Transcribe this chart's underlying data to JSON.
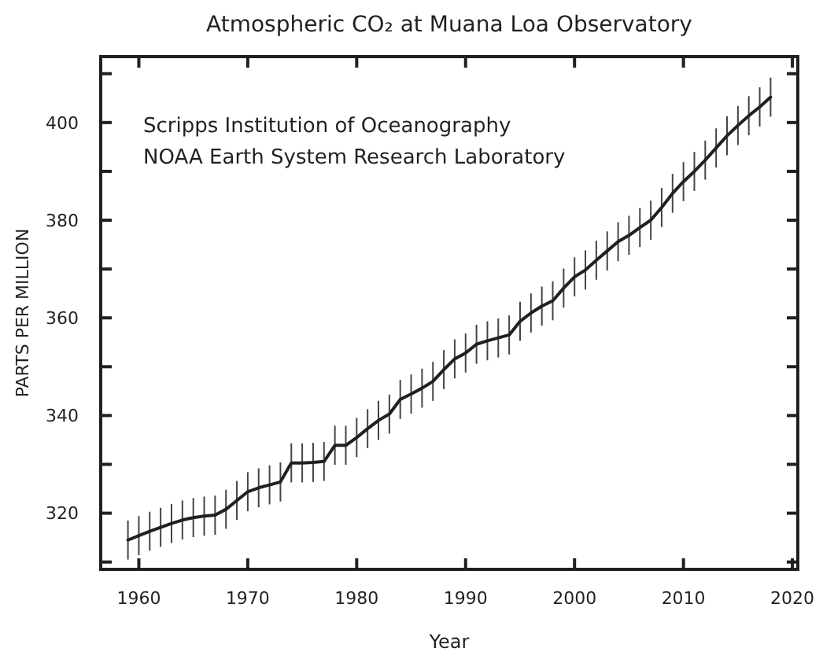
{
  "chart_data": {
    "type": "line",
    "title": "Atmospheric CO₂ at Muana Loa Observatory",
    "xlabel": "Year",
    "ylabel": "PARTS PER MILLION",
    "annotations": [
      "Scripps Institution of Oceanography",
      "NOAA Earth System Research Laboratory"
    ],
    "x": [
      1959,
      1960,
      1961,
      1962,
      1963,
      1964,
      1965,
      1966,
      1967,
      1968,
      1969,
      1970,
      1971,
      1972,
      1973,
      1974,
      1975,
      1976,
      1977,
      1978,
      1979,
      1980,
      1981,
      1982,
      1983,
      1984,
      1985,
      1986,
      1987,
      1988,
      1989,
      1990,
      1991,
      1992,
      1993,
      1994,
      1995,
      1996,
      1997,
      1998,
      1999,
      2000,
      2001,
      2002,
      2003,
      2004,
      2005,
      2006,
      2007,
      2008,
      2009,
      2010,
      2011,
      2012,
      2013,
      2014,
      2015,
      2016,
      2017,
      2018
    ],
    "series": [
      {
        "color": "#231f20",
        "values": [
          314.5,
          315.4,
          316.3,
          317.1,
          317.9,
          318.6,
          319.1,
          319.4,
          319.6,
          320.8,
          322.6,
          324.4,
          325.2,
          325.8,
          326.4,
          330.3,
          330.3,
          330.4,
          330.6,
          333.9,
          333.9,
          335.5,
          337.3,
          339.0,
          340.3,
          343.3,
          344.4,
          345.6,
          347.0,
          349.4,
          351.6,
          352.8,
          354.6,
          355.3,
          355.9,
          356.5,
          359.3,
          361.0,
          362.4,
          363.5,
          366.1,
          368.4,
          369.8,
          371.8,
          373.7,
          375.6,
          376.9,
          378.5,
          380.0,
          382.6,
          385.5,
          387.9,
          390.0,
          392.3,
          394.8,
          397.3,
          399.4,
          401.4,
          403.2,
          405.2
        ],
        "errors": [
          4,
          4,
          4,
          4,
          4,
          4,
          4,
          4,
          4,
          4,
          4,
          4,
          4,
          4,
          4,
          4,
          4,
          4,
          4,
          4,
          4,
          4,
          4,
          4,
          4,
          4,
          4,
          4,
          4,
          4,
          4,
          4,
          4,
          4,
          4,
          4,
          4,
          4,
          4,
          4,
          4,
          4,
          4,
          4,
          4,
          4,
          4,
          4,
          4,
          4,
          4,
          4,
          4,
          4,
          4,
          4,
          4,
          4,
          4,
          4
        ]
      }
    ],
    "xlim": [
      1956.5,
      2020.5
    ],
    "xticks": [
      1960,
      1970,
      1980,
      1990,
      2000,
      2010,
      2020
    ],
    "ylim": [
      308.5,
      413.5
    ],
    "yticks": [
      {
        "value": 310,
        "label": null
      },
      320,
      {
        "value": 330,
        "label": null
      },
      340,
      {
        "value": 350,
        "label": null
      },
      360,
      {
        "value": 370,
        "label": null
      },
      380,
      {
        "value": 390,
        "label": null
      },
      400,
      {
        "value": 410,
        "label": null
      }
    ],
    "grid": false,
    "marker": "none",
    "line_style": "solid"
  }
}
